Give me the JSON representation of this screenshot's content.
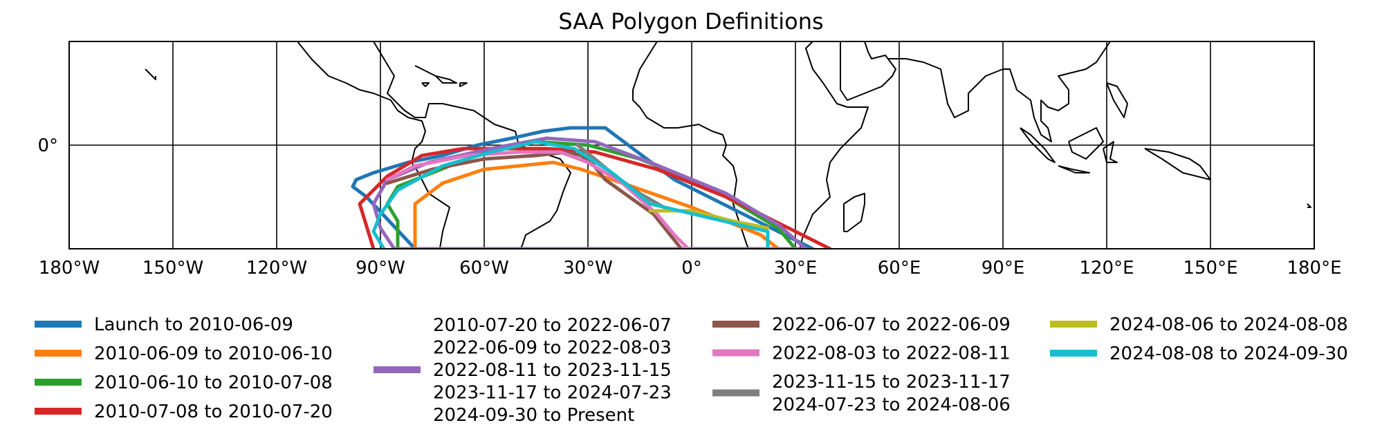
{
  "chart_data": {
    "type": "line",
    "title": "SAA Polygon Definitions",
    "xlabel": "",
    "ylabel": "",
    "xlim": [
      -180,
      180
    ],
    "ylim": [
      -30,
      30
    ],
    "grid": true,
    "legend_placement": "bottom",
    "x_tick_labels": [
      "180°W",
      "150°W",
      "120°W",
      "90°W",
      "60°W",
      "30°W",
      "0°",
      "30°E",
      "60°E",
      "90°E",
      "120°E",
      "150°E",
      "180°E"
    ],
    "x_ticks": [
      -180,
      -150,
      -120,
      -90,
      -60,
      -30,
      0,
      30,
      60,
      90,
      120,
      150,
      180
    ],
    "y_tick_labels": [
      "0°"
    ],
    "y_ticks": [
      0
    ],
    "series": [
      {
        "name": "Launch to 2010-06-09",
        "color": "#1f77b4",
        "lon": [
          -25,
          -35,
          -43,
          -52,
          -62,
          -72,
          -82,
          -92,
          -97,
          -98,
          -94,
          -80,
          -50,
          -20,
          0,
          20,
          35,
          -5,
          -25
        ],
        "lat": [
          5,
          5,
          4,
          2,
          0,
          -3,
          -5,
          -8,
          -10,
          -12,
          -15,
          -30,
          -30,
          -30,
          -30,
          -30,
          -30,
          -10,
          5
        ]
      },
      {
        "name": "2010-06-09 to 2010-06-10",
        "color": "#ff7f0e",
        "lon": [
          -80,
          -80,
          -72,
          -60,
          -40,
          -32,
          -20,
          0,
          20,
          25
        ],
        "lat": [
          -30,
          -17,
          -11,
          -7,
          -5,
          -7,
          -11,
          -18,
          -26,
          -30
        ]
      },
      {
        "name": "2010-06-10 to 2010-07-08",
        "color": "#2ca02c",
        "lon": [
          -85,
          -85,
          -88,
          -85,
          -75,
          -60,
          -45,
          -30,
          -15,
          5,
          25,
          30
        ],
        "lat": [
          -30,
          -22,
          -17,
          -12,
          -8,
          -2,
          1,
          0,
          -4,
          -12,
          -24,
          -30
        ]
      },
      {
        "name": "2010-07-08 to 2010-07-20",
        "color": "#d62728",
        "lon": [
          -92,
          -96,
          -88,
          -78,
          -66,
          -54,
          -42,
          -28,
          -10,
          10,
          30,
          40
        ],
        "lat": [
          -30,
          -17,
          -9,
          -3,
          -1,
          -1,
          -1,
          -2,
          -7,
          -15,
          -25,
          -30
        ]
      },
      {
        "name": "2010-07-20 to 2022-06-07",
        "color": "#9467bd",
        "lon": [
          -86,
          -90,
          -92,
          -88,
          -76,
          -58,
          -42,
          -28,
          -12,
          10,
          25,
          33,
          30,
          -86
        ],
        "lat": [
          -30,
          -24,
          -17,
          -10,
          -5,
          -1,
          2,
          1,
          -5,
          -14,
          -23,
          -30,
          -30,
          -30
        ]
      },
      {
        "name": "2022-06-07 to 2022-06-09",
        "color": "#8c564b",
        "lon": [
          -3,
          -11,
          -18,
          -25,
          -29,
          -32,
          -36,
          -45,
          -60,
          -75,
          -88
        ],
        "lat": [
          -30,
          -20,
          -15,
          -10,
          -5,
          -3,
          -2,
          -3,
          -4,
          -7,
          -11
        ]
      },
      {
        "name": "2022-08-03 to 2022-08-11",
        "color": "#e377c2",
        "lon": [
          -1,
          -5,
          -10,
          -20,
          -30,
          -38,
          -50,
          -65,
          -80,
          -88
        ],
        "lat": [
          -30,
          -26,
          -20,
          -11,
          -5,
          -2,
          -2,
          -3,
          -6,
          -10
        ]
      },
      {
        "name": "2023-11-15 to 2023-11-17",
        "color": "#7f7f7f",
        "lon": [
          -8,
          -15,
          -22,
          -28,
          -33
        ],
        "lat": [
          -18,
          -14,
          -9,
          -4,
          0
        ]
      },
      {
        "name": "2024-08-06 to 2024-08-08",
        "color": "#bcbd22",
        "lon": [
          -12,
          0,
          12,
          22
        ],
        "lat": [
          -19,
          -19,
          -22,
          -24
        ]
      },
      {
        "name": "2024-08-08 to 2024-09-30",
        "color": "#17becf",
        "lon": [
          -89,
          -92,
          -90,
          -85,
          -72,
          -58,
          -45,
          -34,
          -23,
          -12,
          5,
          22,
          22
        ],
        "lat": [
          -30,
          -25,
          -20,
          -13,
          -6,
          -2,
          1,
          -1,
          -8,
          -17,
          -21,
          -25,
          -30
        ]
      }
    ]
  },
  "legend": {
    "columns": [
      {
        "color": "#1f77b4",
        "labels": [
          "Launch to 2010-06-09"
        ]
      },
      {
        "color": "#ff7f0e",
        "labels": [
          "2010-06-09 to 2010-06-10"
        ]
      },
      {
        "color": "#2ca02c",
        "labels": [
          "2010-06-10 to 2010-07-08"
        ]
      },
      {
        "color": "#d62728",
        "labels": [
          "2010-07-08 to 2010-07-20"
        ]
      },
      {
        "color": "#9467bd",
        "labels": [
          "2010-07-20 to 2022-06-07",
          "2022-06-09 to 2022-08-03",
          "2022-08-11 to 2023-11-15",
          "2023-11-17 to 2024-07-23",
          "2024-09-30 to Present"
        ]
      },
      {
        "color": "#8c564b",
        "labels": [
          "2022-06-07 to 2022-06-09"
        ]
      },
      {
        "color": "#e377c2",
        "labels": [
          "2022-08-03 to 2022-08-11"
        ]
      },
      {
        "color": "#7f7f7f",
        "labels": [
          "2023-11-15 to 2023-11-17",
          "2024-07-23 to 2024-08-06"
        ]
      },
      {
        "color": "#bcbd22",
        "labels": [
          "2024-08-06 to 2024-08-08"
        ]
      },
      {
        "color": "#17becf",
        "labels": [
          "2024-08-08 to 2024-09-30"
        ]
      }
    ]
  }
}
